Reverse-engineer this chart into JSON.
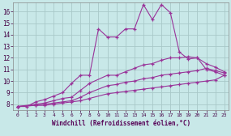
{
  "bg_color": "#c8e8e8",
  "grid_color": "#a8c8c8",
  "line_color": "#993399",
  "xlabel": "Windchill (Refroidissement éolien,°C)",
  "xlim_min": -0.5,
  "xlim_max": 23.5,
  "ylim_min": 7.5,
  "ylim_max": 16.8,
  "xticks": [
    0,
    1,
    2,
    3,
    4,
    5,
    6,
    7,
    8,
    9,
    10,
    11,
    12,
    13,
    14,
    15,
    16,
    17,
    18,
    19,
    20,
    21,
    22,
    23
  ],
  "yticks": [
    8,
    9,
    10,
    11,
    12,
    13,
    14,
    15,
    16
  ],
  "line1_x": [
    0,
    1,
    2,
    3,
    4,
    5,
    6,
    7,
    8,
    9,
    10,
    11,
    12,
    13,
    14,
    15,
    16,
    17,
    18,
    19,
    20,
    21,
    22,
    23
  ],
  "line1_y": [
    7.8,
    7.8,
    8.2,
    8.4,
    8.7,
    9.0,
    9.8,
    10.5,
    10.5,
    14.5,
    13.8,
    13.8,
    14.5,
    14.5,
    16.6,
    15.3,
    16.6,
    15.9,
    12.5,
    11.9,
    12.0,
    11.0,
    10.8,
    10.5
  ],
  "line2_x": [
    0,
    2,
    3,
    4,
    5,
    6,
    7,
    8,
    10,
    11,
    12,
    13,
    14,
    15,
    16,
    17,
    18,
    19,
    20,
    21,
    22,
    23
  ],
  "line2_y": [
    7.8,
    8.0,
    8.1,
    8.3,
    8.5,
    8.6,
    9.2,
    9.8,
    10.5,
    10.5,
    10.8,
    11.1,
    11.4,
    11.5,
    11.8,
    12.0,
    12.0,
    12.1,
    12.0,
    11.5,
    11.2,
    10.8
  ],
  "line3_x": [
    0,
    2,
    3,
    4,
    5,
    6,
    7,
    8,
    10,
    11,
    12,
    13,
    14,
    15,
    16,
    17,
    18,
    19,
    20,
    21,
    22,
    23
  ],
  "line3_y": [
    7.8,
    7.9,
    8.0,
    8.1,
    8.2,
    8.3,
    8.6,
    9.0,
    9.6,
    9.7,
    9.9,
    10.0,
    10.2,
    10.3,
    10.5,
    10.6,
    10.7,
    10.8,
    10.9,
    11.1,
    10.9,
    10.7
  ],
  "line4_x": [
    0,
    2,
    3,
    4,
    5,
    6,
    7,
    8,
    10,
    11,
    12,
    13,
    14,
    15,
    16,
    17,
    18,
    19,
    20,
    21,
    22,
    23
  ],
  "line4_y": [
    7.8,
    7.9,
    7.9,
    8.0,
    8.1,
    8.2,
    8.3,
    8.5,
    8.9,
    9.0,
    9.1,
    9.2,
    9.3,
    9.4,
    9.5,
    9.6,
    9.7,
    9.8,
    9.9,
    10.0,
    10.1,
    10.5
  ]
}
